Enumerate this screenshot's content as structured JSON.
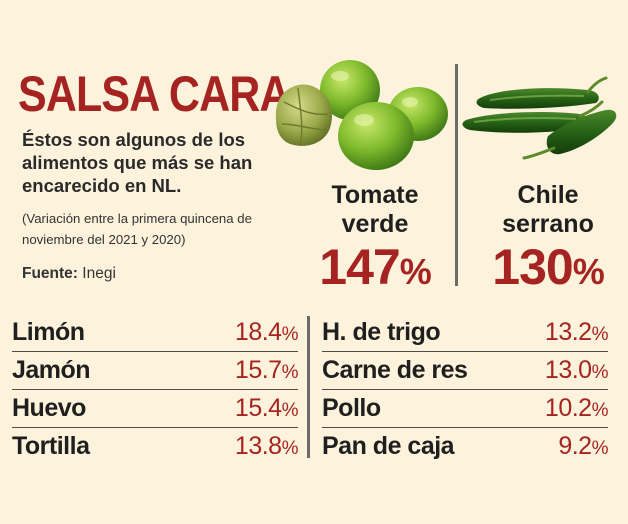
{
  "header": {
    "title": "SALSA CARA",
    "subtitle": "Éstos son algunos de los alimentos que más se han encarecido en NL.",
    "note": "(Variación entre la primera quincena de noviembre del 2021 y 2020)",
    "source_label": "Fuente:",
    "source_value": "Inegi"
  },
  "featured": [
    {
      "name_line1": "Tomate",
      "name_line2": "verde",
      "value": "147",
      "unit": "%",
      "icon": "tomatillo-icon"
    },
    {
      "name_line1": "Chile",
      "name_line2": "serrano",
      "value": "130",
      "unit": "%",
      "icon": "chili-pepper-icon"
    }
  ],
  "list_left": [
    {
      "item": "Limón",
      "value": "18.4",
      "unit": "%"
    },
    {
      "item": "Jamón",
      "value": "15.7",
      "unit": "%"
    },
    {
      "item": "Huevo",
      "value": "15.4",
      "unit": "%"
    },
    {
      "item": "Tortilla",
      "value": "13.8",
      "unit": "%"
    }
  ],
  "list_right": [
    {
      "item": "H. de trigo",
      "value": "13.2",
      "unit": "%"
    },
    {
      "item": "Carne de res",
      "value": "13.0",
      "unit": "%"
    },
    {
      "item": "Pollo",
      "value": "10.2",
      "unit": "%"
    },
    {
      "item": "Pan de caja",
      "value": "9.2",
      "unit": "%"
    }
  ],
  "colors": {
    "accent": "#a52422",
    "background": "#fdf3dc",
    "text": "#1f1f1f"
  }
}
